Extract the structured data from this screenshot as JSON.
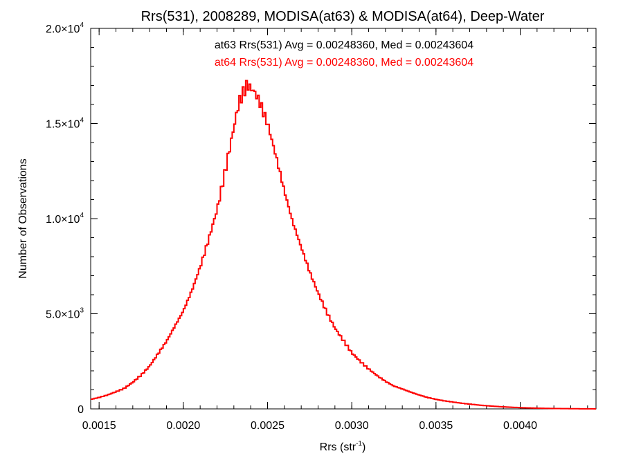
{
  "chart_data": {
    "type": "line",
    "style": "histogram-step",
    "title": "Rrs(531), 2008289, MODISA(at63) & MODISA(at64), Deep-Water",
    "xlabel": {
      "base": "Rrs (str",
      "sup": "-1",
      "tail": ")"
    },
    "ylabel": "Number of Observations",
    "xlim": [
      0.00145,
      0.00445
    ],
    "ylim": [
      0,
      20000
    ],
    "x_ticks": [
      {
        "value": 0.0015,
        "label": "0.0015"
      },
      {
        "value": 0.002,
        "label": "0.0020"
      },
      {
        "value": 0.0025,
        "label": "0.0025"
      },
      {
        "value": 0.003,
        "label": "0.0030"
      },
      {
        "value": 0.0035,
        "label": "0.0035"
      },
      {
        "value": 0.004,
        "label": "0.0040"
      }
    ],
    "y_ticks": [
      {
        "value": 0,
        "mant": "0",
        "exp": ""
      },
      {
        "value": 5000,
        "mant": "5.0×10",
        "exp": "3"
      },
      {
        "value": 10000,
        "mant": "1.0×10",
        "exp": "4"
      },
      {
        "value": 15000,
        "mant": "1.5×10",
        "exp": "4"
      },
      {
        "value": 20000,
        "mant": "2.0×10",
        "exp": "4"
      }
    ],
    "annotations": [
      {
        "text": "at63 Rrs(531) Avg = 0.00248360, Med = 0.00243604",
        "color": "#000000"
      },
      {
        "text": "at64 Rrs(531) Avg = 0.00248360, Med = 0.00243604",
        "color": "#ff0000"
      }
    ],
    "series": [
      {
        "color": "#000000",
        "points": [
          [
            0.00145,
            500
          ],
          [
            0.0015,
            600
          ],
          [
            0.00155,
            730
          ],
          [
            0.0016,
            900
          ],
          [
            0.00165,
            1080
          ],
          [
            0.0017,
            1400
          ],
          [
            0.00175,
            1780
          ],
          [
            0.0018,
            2250
          ],
          [
            0.00185,
            2900
          ],
          [
            0.0019,
            3550
          ],
          [
            0.00195,
            4350
          ],
          [
            0.002,
            5150
          ],
          [
            0.00205,
            6200
          ],
          [
            0.0021,
            7450
          ],
          [
            0.00215,
            8900
          ],
          [
            0.0022,
            10450
          ],
          [
            0.00225,
            12550
          ],
          [
            0.0023,
            14800
          ],
          [
            0.00233,
            16100
          ],
          [
            0.00236,
            16700
          ],
          [
            0.00238,
            17050
          ],
          [
            0.0024,
            16850
          ],
          [
            0.00242,
            16700
          ],
          [
            0.00245,
            16200
          ],
          [
            0.0025,
            15000
          ],
          [
            0.00255,
            13300
          ],
          [
            0.0026,
            11450
          ],
          [
            0.00265,
            9800
          ],
          [
            0.0027,
            8500
          ],
          [
            0.00275,
            7200
          ],
          [
            0.0028,
            6100
          ],
          [
            0.00285,
            5100
          ],
          [
            0.0029,
            4250
          ],
          [
            0.00295,
            3600
          ],
          [
            0.003,
            2950
          ],
          [
            0.00305,
            2500
          ],
          [
            0.0031,
            2100
          ],
          [
            0.00315,
            1750
          ],
          [
            0.0032,
            1450
          ],
          [
            0.00325,
            1200
          ],
          [
            0.0033,
            1050
          ],
          [
            0.00335,
            880
          ],
          [
            0.0034,
            730
          ],
          [
            0.00345,
            600
          ],
          [
            0.0035,
            500
          ],
          [
            0.00355,
            420
          ],
          [
            0.0036,
            360
          ],
          [
            0.00365,
            300
          ],
          [
            0.0037,
            250
          ],
          [
            0.00375,
            205
          ],
          [
            0.0038,
            165
          ],
          [
            0.00385,
            135
          ],
          [
            0.0039,
            105
          ],
          [
            0.00395,
            85
          ],
          [
            0.004,
            65
          ],
          [
            0.00405,
            50
          ],
          [
            0.0041,
            38
          ],
          [
            0.00415,
            28
          ],
          [
            0.0042,
            20
          ],
          [
            0.00425,
            15
          ],
          [
            0.0043,
            10
          ],
          [
            0.00435,
            7
          ],
          [
            0.0044,
            4
          ],
          [
            0.00445,
            2
          ]
        ]
      },
      {
        "color": "#ff0000",
        "points": [
          [
            0.00145,
            500
          ],
          [
            0.0015,
            600
          ],
          [
            0.00155,
            730
          ],
          [
            0.0016,
            900
          ],
          [
            0.00165,
            1080
          ],
          [
            0.0017,
            1400
          ],
          [
            0.00175,
            1780
          ],
          [
            0.0018,
            2250
          ],
          [
            0.00185,
            2900
          ],
          [
            0.0019,
            3550
          ],
          [
            0.00195,
            4350
          ],
          [
            0.002,
            5150
          ],
          [
            0.00205,
            6200
          ],
          [
            0.0021,
            7450
          ],
          [
            0.00215,
            8900
          ],
          [
            0.0022,
            10450
          ],
          [
            0.00225,
            12550
          ],
          [
            0.0023,
            14800
          ],
          [
            0.00233,
            16100
          ],
          [
            0.00236,
            16700
          ],
          [
            0.00238,
            17050
          ],
          [
            0.0024,
            16850
          ],
          [
            0.00242,
            16700
          ],
          [
            0.00245,
            16200
          ],
          [
            0.0025,
            15000
          ],
          [
            0.00255,
            13300
          ],
          [
            0.0026,
            11450
          ],
          [
            0.00265,
            9800
          ],
          [
            0.0027,
            8500
          ],
          [
            0.00275,
            7200
          ],
          [
            0.0028,
            6100
          ],
          [
            0.00285,
            5100
          ],
          [
            0.0029,
            4250
          ],
          [
            0.00295,
            3600
          ],
          [
            0.003,
            2950
          ],
          [
            0.00305,
            2500
          ],
          [
            0.0031,
            2100
          ],
          [
            0.00315,
            1750
          ],
          [
            0.0032,
            1450
          ],
          [
            0.00325,
            1200
          ],
          [
            0.0033,
            1050
          ],
          [
            0.00335,
            880
          ],
          [
            0.0034,
            730
          ],
          [
            0.00345,
            600
          ],
          [
            0.0035,
            500
          ],
          [
            0.00355,
            420
          ],
          [
            0.0036,
            360
          ],
          [
            0.00365,
            300
          ],
          [
            0.0037,
            250
          ],
          [
            0.00375,
            205
          ],
          [
            0.0038,
            165
          ],
          [
            0.00385,
            135
          ],
          [
            0.0039,
            105
          ],
          [
            0.00395,
            85
          ],
          [
            0.004,
            65
          ],
          [
            0.00405,
            50
          ],
          [
            0.0041,
            38
          ],
          [
            0.00415,
            28
          ],
          [
            0.0042,
            20
          ],
          [
            0.00425,
            15
          ],
          [
            0.0043,
            10
          ],
          [
            0.00435,
            7
          ],
          [
            0.0044,
            4
          ],
          [
            0.00445,
            2
          ]
        ]
      }
    ],
    "grid": false,
    "legend": "none"
  }
}
